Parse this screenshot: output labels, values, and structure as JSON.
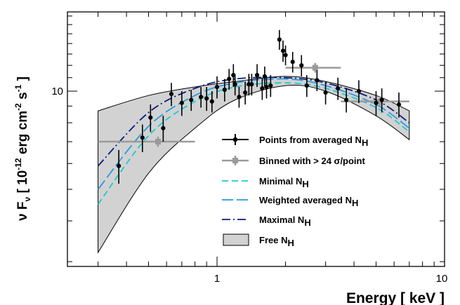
{
  "chart_data": {
    "type": "scatter",
    "title": "",
    "xlabel": "Energy [ keV ]",
    "ylabel": "ν F_ν [ 10^-12 erg cm^-2 s^-1 ]",
    "x_scale": "log",
    "y_scale": "log",
    "xlim": [
      0.22,
      10
    ],
    "ylim": [
      2.9,
      17.5
    ],
    "x_tick_labels": [
      "1",
      "10"
    ],
    "y_tick_labels": [
      "10"
    ],
    "grid": false,
    "legend_position": "bottom-right",
    "colors": {
      "points": "#000000",
      "binned": "#9a9a9a",
      "minimal": "#1ec8d2",
      "weighted": "#2a9adf",
      "maximal": "#0a1a78",
      "band_fill": "#d2d2d2",
      "band_edge": "#000000"
    },
    "series": [
      {
        "name": "Points from averaged N_H",
        "kind": "errorbar",
        "x": [
          0.37,
          0.47,
          0.51,
          0.58,
          0.63,
          0.7,
          0.77,
          0.85,
          0.9,
          0.95,
          1.0,
          1.08,
          1.13,
          1.18,
          1.2,
          1.25,
          1.33,
          1.38,
          1.42,
          1.5,
          1.58,
          1.62,
          1.65,
          1.72,
          1.88,
          1.95,
          2.0,
          2.15,
          2.35,
          2.48,
          2.75,
          3.0,
          3.4,
          3.7,
          4.2,
          5.0,
          5.3,
          6.3
        ],
        "y": [
          5.9,
          7.2,
          8.3,
          7.7,
          9.8,
          9.2,
          9.4,
          9.6,
          9.5,
          9.3,
          10.3,
          10.1,
          10.9,
          11.2,
          10.5,
          9.6,
          9.9,
          10.5,
          10.5,
          11.2,
          10.2,
          11.1,
          10.3,
          10.4,
          14.4,
          13.3,
          12.9,
          12.3,
          12.0,
          10.4,
          10.8,
          9.9,
          10.2,
          9.4,
          10.0,
          9.2,
          9.4,
          9.1
        ],
        "yerr": [
          0.7,
          0.7,
          0.8,
          0.7,
          0.8,
          0.8,
          0.7,
          0.7,
          0.8,
          0.7,
          0.8,
          0.8,
          0.8,
          0.9,
          0.8,
          0.7,
          0.8,
          0.8,
          0.8,
          0.9,
          0.8,
          0.8,
          0.8,
          0.8,
          1.0,
          1.0,
          0.9,
          0.9,
          0.9,
          0.8,
          0.8,
          0.8,
          0.8,
          0.8,
          0.8,
          0.8,
          0.8,
          0.8
        ]
      },
      {
        "name": "Binned with > 24 σ/point",
        "kind": "binned",
        "x": [
          0.55,
          2.7,
          5.2
        ],
        "xerr_low": [
          0.25,
          0.7,
          1.7
        ],
        "xerr_high": [
          0.25,
          0.8,
          1.8
        ],
        "y": [
          7.0,
          11.8,
          9.3
        ],
        "yerr": [
          0.25,
          0.4,
          0.35
        ]
      },
      {
        "name": "Minimal N_H",
        "kind": "model",
        "x": [
          0.3,
          0.5,
          0.8,
          1.2,
          2.0,
          3.0,
          5.0,
          7.0
        ],
        "y": [
          4.5,
          7.3,
          9.3,
          10.3,
          10.6,
          10.2,
          8.9,
          7.5
        ]
      },
      {
        "name": "Weighted averaged N_H",
        "kind": "model",
        "x": [
          0.3,
          0.5,
          0.8,
          1.2,
          2.0,
          3.0,
          5.0,
          7.0
        ],
        "y": [
          5.0,
          7.8,
          9.7,
          10.6,
          10.9,
          10.4,
          9.1,
          7.7
        ]
      },
      {
        "name": "Maximal N_H",
        "kind": "model",
        "x": [
          0.3,
          0.5,
          0.8,
          1.2,
          2.0,
          3.0,
          5.0,
          7.0
        ],
        "y": [
          5.9,
          8.6,
          10.2,
          10.9,
          11.0,
          10.6,
          9.4,
          8.0
        ]
      },
      {
        "name": "Free N_H",
        "kind": "band",
        "x": [
          0.3,
          0.5,
          0.8,
          1.2,
          2.0,
          3.0,
          5.0,
          7.0
        ],
        "upper": [
          8.7,
          9.7,
          10.3,
          10.7,
          11.1,
          10.7,
          9.7,
          8.7
        ],
        "lower": [
          3.2,
          5.6,
          7.7,
          9.4,
          10.4,
          10.0,
          8.4,
          7.1
        ]
      }
    ]
  }
}
